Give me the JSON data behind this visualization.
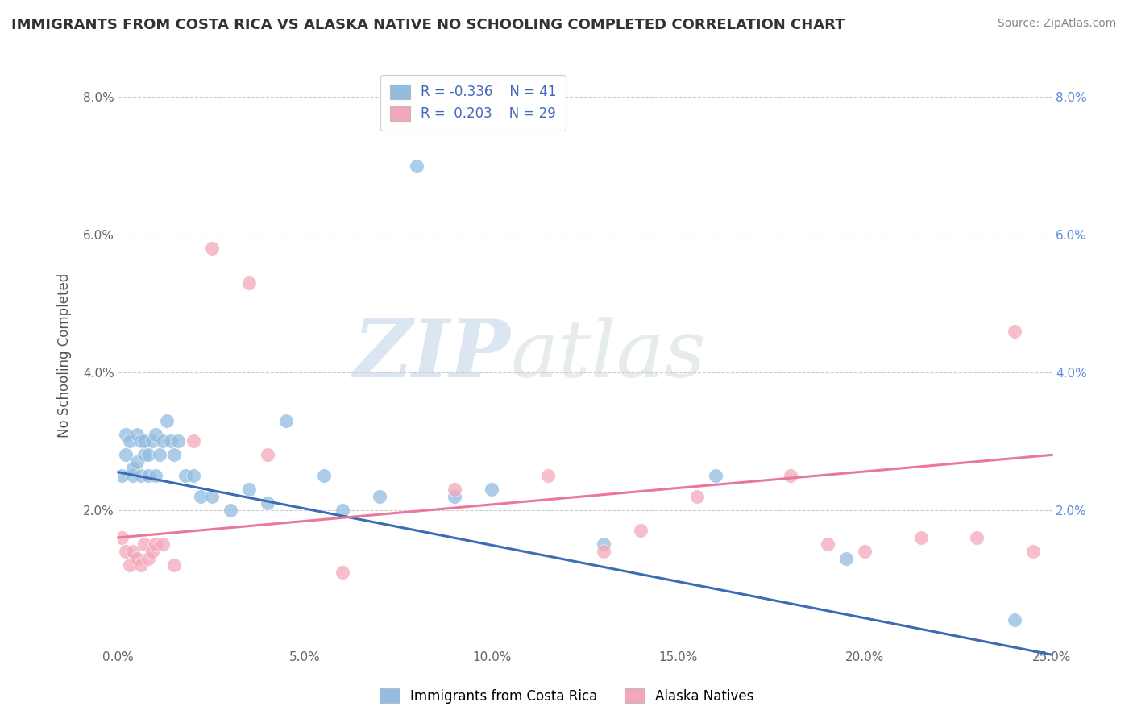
{
  "title": "IMMIGRANTS FROM COSTA RICA VS ALASKA NATIVE NO SCHOOLING COMPLETED CORRELATION CHART",
  "source": "Source: ZipAtlas.com",
  "ylabel": "No Schooling Completed",
  "xlim": [
    0.0,
    0.25
  ],
  "ylim": [
    0.0,
    0.085
  ],
  "xticks": [
    0.0,
    0.05,
    0.1,
    0.15,
    0.2,
    0.25
  ],
  "xtick_labels": [
    "0.0%",
    "5.0%",
    "10.0%",
    "15.0%",
    "20.0%",
    "25.0%"
  ],
  "yticks": [
    0.0,
    0.02,
    0.04,
    0.06,
    0.08
  ],
  "ytick_labels": [
    "",
    "2.0%",
    "4.0%",
    "6.0%",
    "8.0%"
  ],
  "right_ytick_labels": [
    "",
    "2.0%",
    "4.0%",
    "6.0%",
    "8.0%"
  ],
  "legend_r1": "R = -0.336",
  "legend_n1": "N = 41",
  "legend_r2": "R =  0.203",
  "legend_n2": "N = 29",
  "color_blue": "#92bce0",
  "color_pink": "#f4a7b9",
  "color_blue_line": "#3a6db5",
  "color_pink_line": "#e8799a",
  "blue_scatter_x": [
    0.001,
    0.002,
    0.002,
    0.003,
    0.004,
    0.004,
    0.005,
    0.005,
    0.006,
    0.006,
    0.007,
    0.007,
    0.008,
    0.008,
    0.009,
    0.01,
    0.01,
    0.011,
    0.012,
    0.013,
    0.014,
    0.015,
    0.016,
    0.018,
    0.02,
    0.022,
    0.025,
    0.03,
    0.035,
    0.04,
    0.045,
    0.055,
    0.06,
    0.07,
    0.08,
    0.09,
    0.1,
    0.13,
    0.16,
    0.195,
    0.24
  ],
  "blue_scatter_y": [
    0.025,
    0.028,
    0.031,
    0.03,
    0.025,
    0.026,
    0.031,
    0.027,
    0.03,
    0.025,
    0.028,
    0.03,
    0.025,
    0.028,
    0.03,
    0.031,
    0.025,
    0.028,
    0.03,
    0.033,
    0.03,
    0.028,
    0.03,
    0.025,
    0.025,
    0.022,
    0.022,
    0.02,
    0.023,
    0.021,
    0.033,
    0.025,
    0.02,
    0.022,
    0.07,
    0.022,
    0.023,
    0.015,
    0.025,
    0.013,
    0.004
  ],
  "pink_scatter_x": [
    0.001,
    0.002,
    0.003,
    0.004,
    0.005,
    0.006,
    0.007,
    0.008,
    0.009,
    0.01,
    0.012,
    0.015,
    0.02,
    0.025,
    0.035,
    0.04,
    0.06,
    0.09,
    0.115,
    0.13,
    0.14,
    0.155,
    0.18,
    0.19,
    0.2,
    0.215,
    0.23,
    0.24,
    0.245
  ],
  "pink_scatter_y": [
    0.016,
    0.014,
    0.012,
    0.014,
    0.013,
    0.012,
    0.015,
    0.013,
    0.014,
    0.015,
    0.015,
    0.012,
    0.03,
    0.058,
    0.053,
    0.028,
    0.011,
    0.023,
    0.025,
    0.014,
    0.017,
    0.022,
    0.025,
    0.015,
    0.014,
    0.016,
    0.016,
    0.046,
    0.014
  ],
  "blue_trend_y_start": 0.0255,
  "blue_trend_y_end": -0.001,
  "pink_trend_y_start": 0.016,
  "pink_trend_y_end": 0.028,
  "watermark_zip": "ZIP",
  "watermark_atlas": "atlas",
  "background_color": "#ffffff",
  "grid_color": "#cccccc"
}
